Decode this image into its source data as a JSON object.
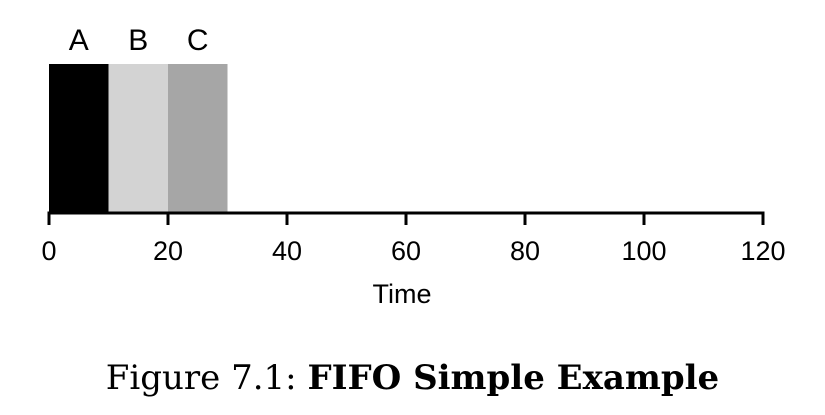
{
  "chart_data": {
    "type": "bar",
    "orientation": "horizontal-timeline",
    "xlabel": "Time",
    "xlim": [
      0,
      120
    ],
    "xticks": [
      0,
      20,
      40,
      60,
      80,
      100,
      120
    ],
    "grid": false,
    "jobs": [
      {
        "name": "A",
        "start": 0,
        "end": 10,
        "color": "#000000"
      },
      {
        "name": "B",
        "start": 10,
        "end": 20,
        "color": "#d3d3d3"
      },
      {
        "name": "C",
        "start": 20,
        "end": 30,
        "color": "#a6a6a6"
      }
    ]
  },
  "caption": {
    "prefix": "Figure 7.1: ",
    "title": "FIFO Simple Example"
  }
}
